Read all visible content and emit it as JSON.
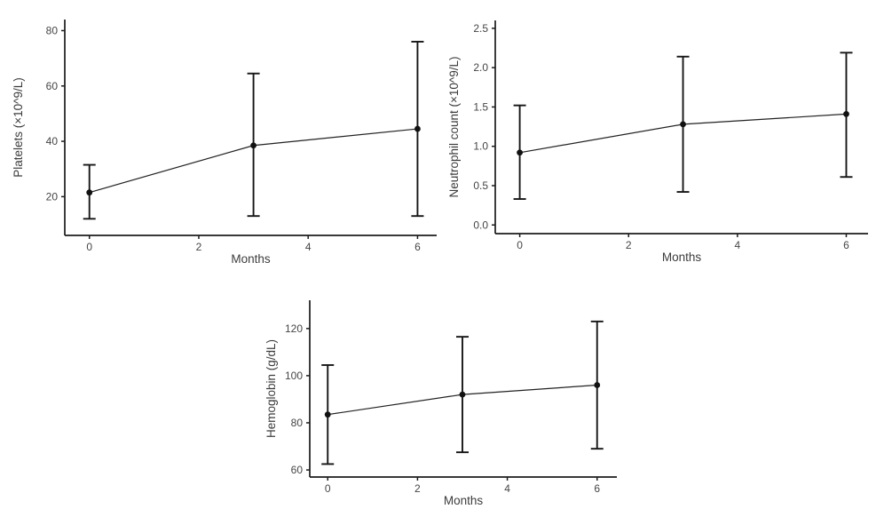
{
  "figure": {
    "background": "#ffffff",
    "description": "Three-panel error-bar line figure of blood counts over months"
  },
  "colors": {
    "axis": "#1b1b1b",
    "line": "#222222",
    "marker": "#111111",
    "error_bar": "#161616",
    "tick_label": "#454545",
    "axis_title": "#3c3c3c"
  },
  "chart_data": [
    {
      "id": "platelets",
      "type": "line",
      "title": "",
      "xlabel": "Months",
      "ylabel": "Platelets (×10^9/L)",
      "x": [
        0,
        3,
        6
      ],
      "values": [
        21.5,
        38.5,
        44.5
      ],
      "error_low": [
        12,
        13,
        13
      ],
      "error_high": [
        31.5,
        64.5,
        76
      ],
      "xticks": [
        0,
        2,
        4,
        6
      ],
      "xtick_labels": [
        "0",
        "2",
        "4",
        "6"
      ],
      "yticks": [
        20,
        40,
        60,
        80
      ],
      "ytick_labels": [
        "20",
        "40",
        "60",
        "80"
      ],
      "xlim": [
        -0.45,
        6.35
      ],
      "ylim": [
        6,
        84
      ],
      "grid": false,
      "legend": "none",
      "marker": "circle",
      "error_bars": true
    },
    {
      "id": "neutrophil-count",
      "type": "line",
      "title": "",
      "xlabel": "Months",
      "ylabel": "Neutrophil count (×10^9/L)",
      "x": [
        0,
        3,
        6
      ],
      "values": [
        0.92,
        1.28,
        1.41
      ],
      "error_low": [
        0.33,
        0.42,
        0.61
      ],
      "error_high": [
        1.52,
        2.14,
        2.19
      ],
      "xticks": [
        0,
        2,
        4,
        6
      ],
      "xtick_labels": [
        "0",
        "2",
        "4",
        "6"
      ],
      "yticks": [
        0,
        0.5,
        1.0,
        1.5,
        2.0,
        2.5
      ],
      "ytick_labels": [
        "0.0",
        "0.5",
        "1.0",
        "1.5",
        "2.0",
        "2.5"
      ],
      "xlim": [
        -0.45,
        6.4
      ],
      "ylim": [
        -0.11,
        2.6
      ],
      "grid": false,
      "legend": "none",
      "marker": "circle",
      "error_bars": true
    },
    {
      "id": "hemoglobin",
      "type": "line",
      "title": "",
      "xlabel": "Months",
      "ylabel": "Hemoglobin (g/dL)",
      "x": [
        0,
        3,
        6
      ],
      "values": [
        83.5,
        92,
        96
      ],
      "error_low": [
        62.5,
        67.5,
        69
      ],
      "error_high": [
        104.5,
        116.5,
        123
      ],
      "xticks": [
        0,
        2,
        4,
        6
      ],
      "xtick_labels": [
        "0",
        "2",
        "4",
        "6"
      ],
      "yticks": [
        60,
        80,
        100,
        120
      ],
      "ytick_labels": [
        "60",
        "80",
        "100",
        "120"
      ],
      "xlim": [
        -0.4,
        6.44
      ],
      "ylim": [
        57,
        132
      ],
      "grid": false,
      "legend": "none",
      "marker": "circle",
      "error_bars": true
    }
  ]
}
